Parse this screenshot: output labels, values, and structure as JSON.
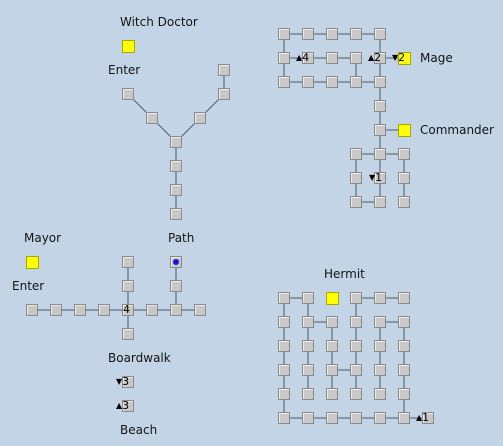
{
  "map": {
    "places": {
      "witch_doctor": "Witch Doctor",
      "enter_top": "Enter",
      "mage": "Mage",
      "commander": "Commander",
      "mayor": "Mayor",
      "path": "Path",
      "enter_bottom": "Enter",
      "hermit": "Hermit",
      "boardwalk": "Boardwalk",
      "beach": "Beach"
    },
    "room_numbers": {
      "mage_4": "4",
      "mage_2a": "2",
      "mage_2b": "2",
      "commander_1": "1",
      "path_4": "4",
      "boardwalk_3a": "3",
      "boardwalk_3b": "3",
      "hermit_1": "1"
    },
    "colors": {
      "background": "#c2d4e6",
      "room": "#c8c8c8",
      "key_room": "#ffff00",
      "current_marker": "#1a1acc",
      "connector": "#4a5a6a"
    }
  }
}
